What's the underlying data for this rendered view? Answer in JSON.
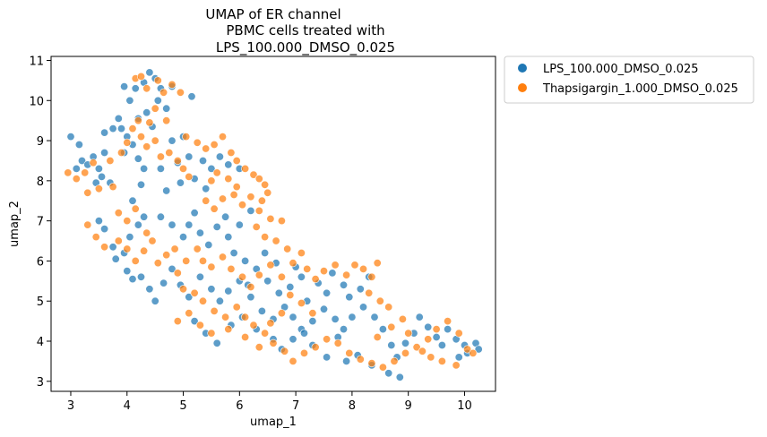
{
  "chart_data": {
    "type": "scatter",
    "title_lines": [
      "UMAP of ER channel",
      "PBMC cells treated with",
      "LPS_100.000_DMSO_0.025"
    ],
    "xlabel": "umap_1",
    "ylabel": "umap_2",
    "xlim": [
      2.65,
      10.55
    ],
    "ylim": [
      2.75,
      11.1
    ],
    "xticks": [
      "3",
      "4",
      "5",
      "6",
      "7",
      "8",
      "9",
      "10"
    ],
    "yticks": [
      "3",
      "4",
      "5",
      "6",
      "7",
      "8",
      "9",
      "10",
      "11"
    ],
    "grid": false,
    "legend_placement": "outside-top-right",
    "series": [
      {
        "name": "LPS_100.000_DMSO_0.025",
        "color": "#1f77b4",
        "points": [
          [
            3.0,
            9.1
          ],
          [
            3.15,
            8.9
          ],
          [
            3.1,
            8.3
          ],
          [
            3.2,
            8.5
          ],
          [
            3.3,
            8.4
          ],
          [
            3.4,
            8.6
          ],
          [
            3.5,
            8.3
          ],
          [
            3.6,
            8.7
          ],
          [
            3.45,
            7.95
          ],
          [
            3.55,
            8.1
          ],
          [
            3.7,
            7.95
          ],
          [
            3.6,
            9.2
          ],
          [
            3.75,
            9.3
          ],
          [
            3.85,
            9.55
          ],
          [
            3.9,
            9.3
          ],
          [
            4.0,
            9.1
          ],
          [
            4.1,
            8.9
          ],
          [
            4.2,
            8.55
          ],
          [
            3.95,
            8.7
          ],
          [
            4.3,
            8.3
          ],
          [
            3.95,
            10.35
          ],
          [
            4.05,
            10.0
          ],
          [
            4.15,
            10.3
          ],
          [
            4.3,
            10.45
          ],
          [
            4.4,
            10.7
          ],
          [
            4.5,
            10.55
          ],
          [
            4.6,
            10.3
          ],
          [
            4.55,
            10.0
          ],
          [
            4.7,
            9.8
          ],
          [
            4.8,
            10.35
          ],
          [
            5.15,
            10.1
          ],
          [
            4.35,
            9.7
          ],
          [
            4.2,
            9.55
          ],
          [
            4.45,
            9.35
          ],
          [
            4.8,
            9.0
          ],
          [
            5.0,
            9.1
          ],
          [
            5.1,
            8.6
          ],
          [
            4.9,
            8.45
          ],
          [
            4.6,
            8.3
          ],
          [
            5.35,
            8.5
          ],
          [
            5.5,
            8.3
          ],
          [
            5.65,
            8.6
          ],
          [
            5.8,
            8.4
          ],
          [
            6.0,
            8.3
          ],
          [
            5.2,
            8.05
          ],
          [
            5.4,
            7.8
          ],
          [
            4.7,
            7.75
          ],
          [
            4.95,
            7.95
          ],
          [
            4.25,
            7.9
          ],
          [
            4.1,
            7.5
          ],
          [
            3.5,
            7.0
          ],
          [
            3.6,
            6.8
          ],
          [
            3.75,
            6.35
          ],
          [
            3.8,
            6.05
          ],
          [
            3.95,
            6.2
          ],
          [
            4.05,
            6.6
          ],
          [
            4.2,
            6.9
          ],
          [
            4.3,
            7.1
          ],
          [
            4.6,
            7.1
          ],
          [
            4.8,
            6.9
          ],
          [
            5.0,
            6.6
          ],
          [
            5.1,
            6.9
          ],
          [
            5.2,
            7.2
          ],
          [
            5.3,
            6.7
          ],
          [
            5.45,
            6.4
          ],
          [
            5.6,
            6.85
          ],
          [
            5.75,
            7.1
          ],
          [
            5.8,
            6.6
          ],
          [
            6.0,
            6.9
          ],
          [
            6.2,
            7.25
          ],
          [
            5.9,
            6.2
          ],
          [
            6.1,
            6.0
          ],
          [
            6.3,
            5.8
          ],
          [
            6.5,
            5.5
          ],
          [
            6.7,
            5.2
          ],
          [
            6.9,
            5.35
          ],
          [
            7.1,
            5.6
          ],
          [
            7.2,
            5.0
          ],
          [
            7.4,
            5.45
          ],
          [
            7.55,
            5.2
          ],
          [
            4.0,
            5.75
          ],
          [
            4.1,
            5.55
          ],
          [
            4.25,
            5.6
          ],
          [
            4.4,
            5.3
          ],
          [
            4.5,
            5.0
          ],
          [
            4.65,
            5.45
          ],
          [
            4.8,
            5.8
          ],
          [
            4.95,
            5.4
          ],
          [
            5.1,
            5.1
          ],
          [
            5.3,
            5.6
          ],
          [
            5.5,
            5.3
          ],
          [
            5.65,
            5.0
          ],
          [
            5.8,
            5.25
          ],
          [
            6.0,
            5.5
          ],
          [
            6.2,
            5.1
          ],
          [
            6.4,
            4.75
          ],
          [
            6.6,
            4.55
          ],
          [
            6.8,
            4.85
          ],
          [
            6.95,
            4.6
          ],
          [
            7.1,
            4.3
          ],
          [
            5.2,
            4.5
          ],
          [
            5.4,
            4.2
          ],
          [
            5.6,
            3.95
          ],
          [
            5.85,
            4.4
          ],
          [
            6.05,
            4.6
          ],
          [
            6.3,
            4.3
          ],
          [
            6.6,
            4.05
          ],
          [
            6.75,
            3.8
          ],
          [
            6.95,
            4.05
          ],
          [
            7.15,
            4.2
          ],
          [
            7.3,
            4.5
          ],
          [
            7.5,
            4.8
          ],
          [
            7.7,
            4.55
          ],
          [
            7.85,
            4.3
          ],
          [
            8.0,
            4.6
          ],
          [
            8.2,
            4.85
          ],
          [
            8.4,
            4.6
          ],
          [
            8.55,
            4.3
          ],
          [
            8.7,
            3.9
          ],
          [
            8.8,
            3.6
          ],
          [
            8.95,
            3.95
          ],
          [
            9.1,
            4.2
          ],
          [
            9.2,
            4.6
          ],
          [
            9.35,
            4.35
          ],
          [
            9.5,
            4.1
          ],
          [
            9.6,
            3.9
          ],
          [
            9.7,
            4.3
          ],
          [
            9.85,
            4.05
          ],
          [
            10.0,
            3.9
          ],
          [
            10.2,
            3.95
          ],
          [
            10.25,
            3.8
          ],
          [
            10.05,
            3.7
          ],
          [
            9.9,
            3.6
          ],
          [
            7.9,
            3.5
          ],
          [
            8.1,
            3.65
          ],
          [
            8.35,
            3.4
          ],
          [
            8.65,
            3.2
          ],
          [
            8.85,
            3.1
          ],
          [
            7.55,
            3.6
          ],
          [
            7.3,
            3.9
          ],
          [
            7.75,
            4.1
          ],
          [
            7.95,
            5.1
          ],
          [
            8.15,
            5.3
          ],
          [
            8.3,
            5.6
          ],
          [
            7.85,
            5.4
          ],
          [
            7.65,
            5.7
          ],
          [
            6.15,
            5.4
          ],
          [
            6.45,
            6.2
          ],
          [
            6.65,
            5.95
          ],
          [
            7.0,
            5.85
          ]
        ]
      },
      {
        "name": "Thapsigargin_1.000_DMSO_0.025",
        "color": "#ff7f0e",
        "points": [
          [
            2.95,
            8.2
          ],
          [
            3.1,
            8.05
          ],
          [
            3.25,
            8.2
          ],
          [
            3.4,
            8.45
          ],
          [
            3.3,
            7.7
          ],
          [
            3.5,
            7.8
          ],
          [
            3.75,
            7.85
          ],
          [
            3.7,
            8.5
          ],
          [
            3.9,
            8.7
          ],
          [
            4.0,
            8.95
          ],
          [
            4.1,
            9.3
          ],
          [
            4.2,
            9.5
          ],
          [
            4.25,
            9.1
          ],
          [
            4.35,
            8.85
          ],
          [
            4.5,
            9.0
          ],
          [
            4.6,
            8.6
          ],
          [
            4.75,
            8.7
          ],
          [
            4.9,
            8.5
          ],
          [
            5.0,
            8.3
          ],
          [
            5.1,
            8.1
          ],
          [
            4.15,
            10.55
          ],
          [
            4.25,
            10.6
          ],
          [
            4.35,
            10.3
          ],
          [
            4.55,
            10.5
          ],
          [
            4.65,
            10.2
          ],
          [
            4.8,
            10.4
          ],
          [
            4.95,
            10.2
          ],
          [
            4.5,
            9.8
          ],
          [
            4.4,
            9.45
          ],
          [
            4.7,
            9.5
          ],
          [
            5.05,
            9.1
          ],
          [
            5.25,
            8.95
          ],
          [
            5.4,
            8.8
          ],
          [
            5.55,
            8.9
          ],
          [
            5.7,
            9.1
          ],
          [
            5.85,
            8.7
          ],
          [
            5.95,
            8.5
          ],
          [
            6.1,
            8.3
          ],
          [
            6.25,
            8.15
          ],
          [
            6.35,
            8.05
          ],
          [
            6.45,
            7.9
          ],
          [
            6.5,
            7.7
          ],
          [
            6.4,
            7.5
          ],
          [
            6.35,
            7.25
          ],
          [
            6.55,
            7.05
          ],
          [
            6.75,
            7.0
          ],
          [
            6.3,
            6.85
          ],
          [
            6.45,
            6.6
          ],
          [
            6.65,
            6.5
          ],
          [
            6.85,
            6.3
          ],
          [
            5.4,
            7.5
          ],
          [
            5.55,
            7.3
          ],
          [
            5.7,
            7.55
          ],
          [
            5.8,
            8.05
          ],
          [
            5.6,
            8.2
          ],
          [
            5.5,
            8.0
          ],
          [
            5.9,
            7.65
          ],
          [
            6.05,
            7.4
          ],
          [
            6.2,
            7.6
          ],
          [
            5.95,
            7.85
          ],
          [
            3.3,
            6.9
          ],
          [
            3.45,
            6.6
          ],
          [
            3.6,
            6.35
          ],
          [
            3.85,
            6.5
          ],
          [
            4.0,
            6.3
          ],
          [
            4.15,
            6.0
          ],
          [
            4.3,
            6.25
          ],
          [
            4.45,
            6.5
          ],
          [
            4.55,
            5.95
          ],
          [
            4.7,
            6.15
          ],
          [
            3.85,
            7.2
          ],
          [
            4.0,
            7.0
          ],
          [
            4.15,
            7.3
          ],
          [
            4.35,
            6.7
          ],
          [
            4.85,
            6.3
          ],
          [
            5.05,
            6.0
          ],
          [
            5.25,
            6.3
          ],
          [
            5.35,
            6.0
          ],
          [
            5.5,
            5.85
          ],
          [
            5.7,
            6.1
          ],
          [
            5.85,
            5.8
          ],
          [
            6.05,
            5.6
          ],
          [
            6.2,
            5.35
          ],
          [
            6.35,
            5.65
          ],
          [
            6.55,
            5.9
          ],
          [
            6.75,
            5.6
          ],
          [
            6.95,
            5.95
          ],
          [
            7.1,
            6.2
          ],
          [
            7.2,
            5.8
          ],
          [
            7.35,
            5.55
          ],
          [
            7.5,
            5.75
          ],
          [
            7.7,
            5.9
          ],
          [
            7.9,
            5.65
          ],
          [
            8.05,
            5.9
          ],
          [
            8.2,
            5.8
          ],
          [
            8.35,
            5.6
          ],
          [
            8.45,
            5.95
          ],
          [
            8.3,
            5.2
          ],
          [
            8.5,
            5.0
          ],
          [
            8.65,
            4.85
          ],
          [
            4.9,
            5.7
          ],
          [
            5.0,
            5.3
          ],
          [
            5.2,
            5.2
          ],
          [
            5.35,
            5.0
          ],
          [
            5.55,
            4.75
          ],
          [
            5.75,
            4.6
          ],
          [
            5.95,
            4.85
          ],
          [
            6.1,
            4.6
          ],
          [
            6.25,
            4.4
          ],
          [
            6.45,
            4.2
          ],
          [
            6.6,
            3.95
          ],
          [
            6.8,
            3.75
          ],
          [
            6.95,
            3.5
          ],
          [
            7.15,
            3.7
          ],
          [
            7.35,
            3.85
          ],
          [
            7.55,
            4.05
          ],
          [
            7.75,
            3.95
          ],
          [
            7.95,
            3.7
          ],
          [
            8.15,
            3.55
          ],
          [
            8.35,
            3.45
          ],
          [
            8.55,
            3.35
          ],
          [
            8.75,
            3.5
          ],
          [
            8.95,
            3.7
          ],
          [
            9.15,
            3.85
          ],
          [
            9.35,
            4.05
          ],
          [
            9.5,
            4.3
          ],
          [
            9.7,
            4.5
          ],
          [
            9.9,
            4.2
          ],
          [
            10.05,
            3.8
          ],
          [
            10.15,
            3.7
          ],
          [
            9.6,
            3.5
          ],
          [
            9.4,
            3.6
          ],
          [
            9.25,
            3.75
          ],
          [
            9.85,
            3.4
          ],
          [
            8.45,
            4.1
          ],
          [
            8.7,
            4.35
          ],
          [
            8.9,
            4.55
          ],
          [
            9.0,
            4.2
          ],
          [
            7.3,
            4.7
          ],
          [
            7.1,
            4.95
          ],
          [
            4.9,
            4.5
          ],
          [
            5.1,
            4.7
          ],
          [
            5.3,
            4.4
          ],
          [
            5.5,
            4.2
          ],
          [
            5.8,
            4.3
          ],
          [
            6.1,
            4.1
          ],
          [
            6.35,
            3.85
          ],
          [
            6.55,
            4.45
          ],
          [
            6.75,
            4.7
          ],
          [
            6.9,
            5.15
          ]
        ]
      }
    ]
  }
}
